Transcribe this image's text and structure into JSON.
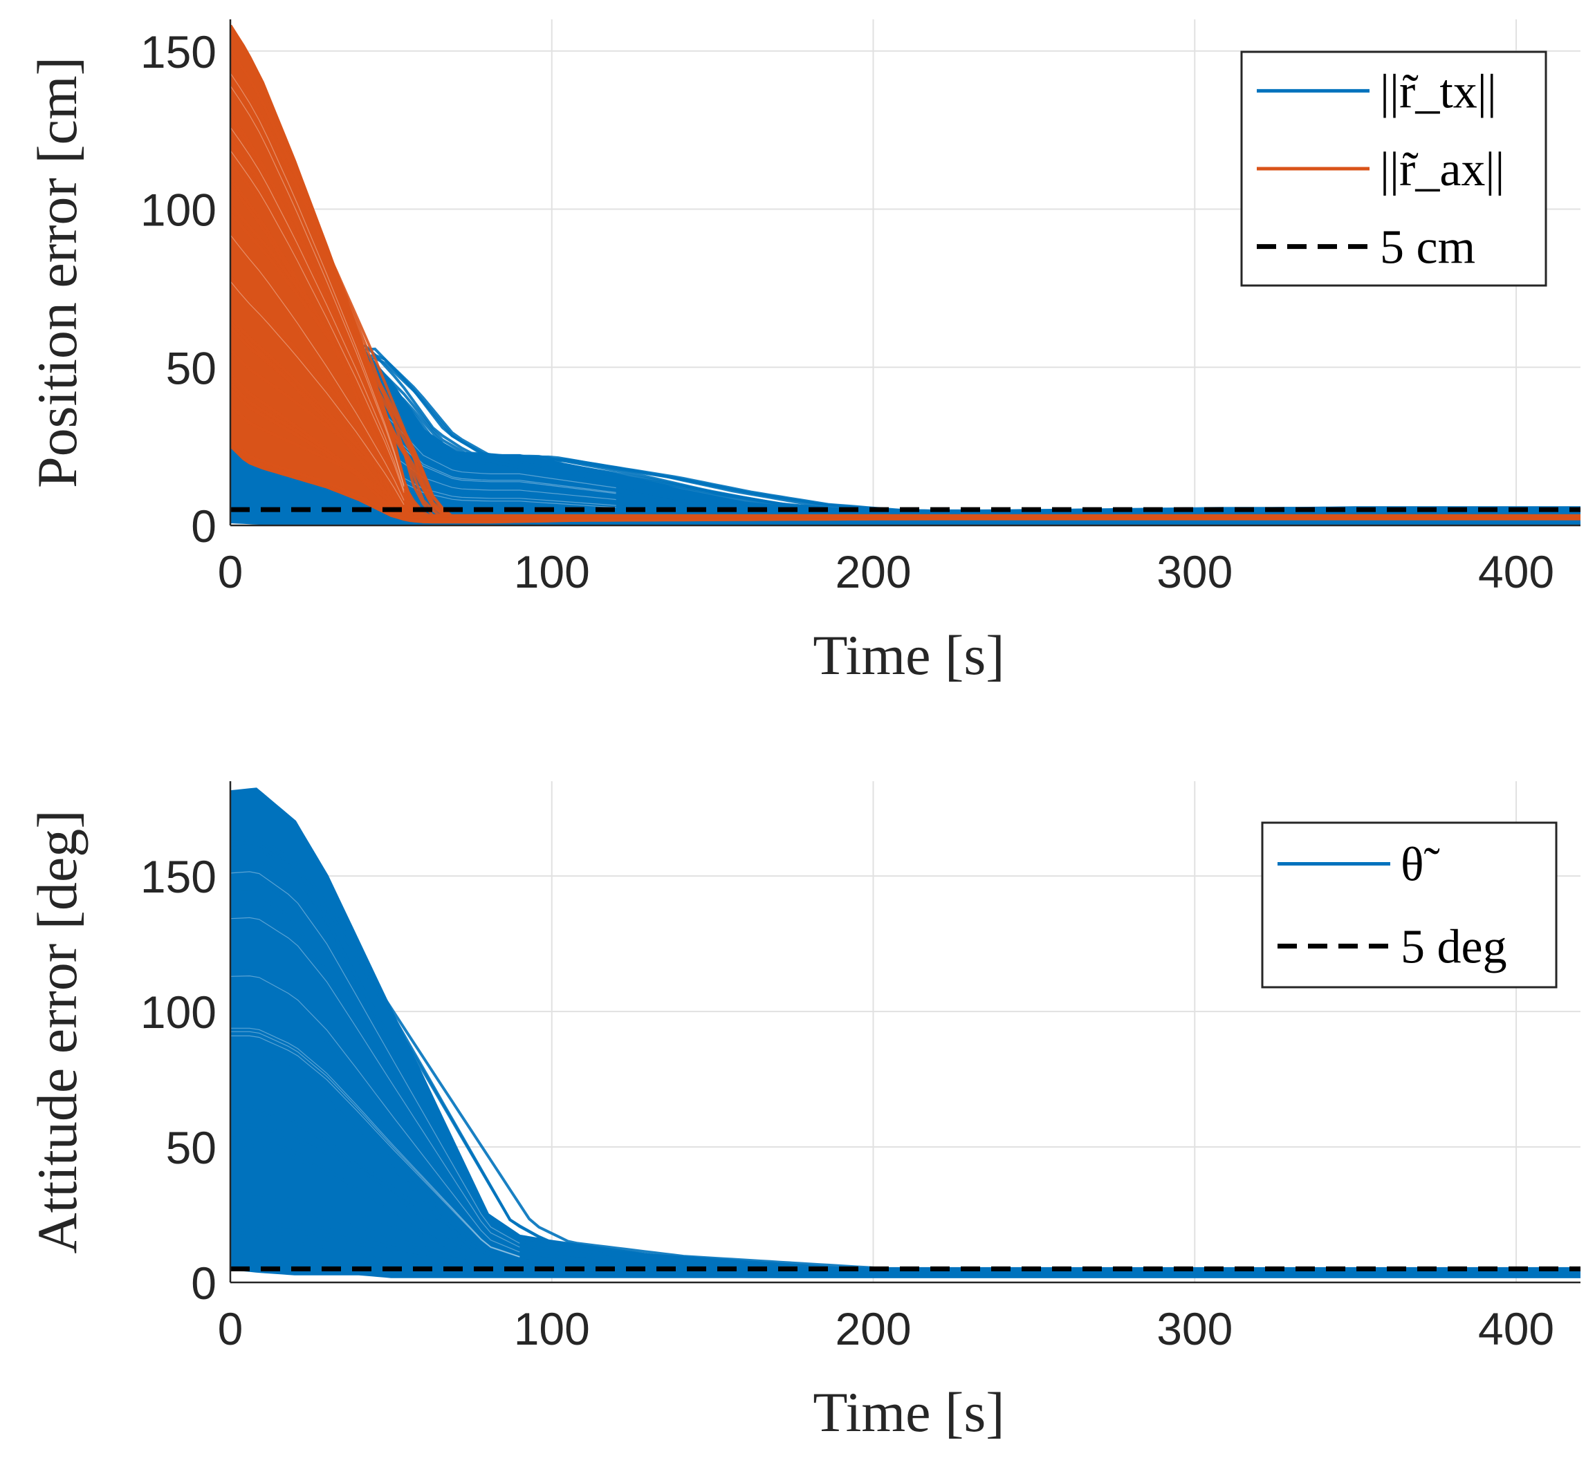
{
  "chart_data": [
    {
      "type": "line",
      "xlabel": "Time [s]",
      "ylabel": "Position error [cm]",
      "xlim": [
        0,
        420
      ],
      "ylim": [
        0,
        160
      ],
      "xticks": [
        0,
        100,
        200,
        300,
        400
      ],
      "yticks": [
        0,
        50,
        100,
        150
      ],
      "grid": true,
      "legend_position": "top-right",
      "series": [
        {
          "name": "||r̃_tx||",
          "color": "#0072BD",
          "style": "solid",
          "envelope": {
            "x": [
              0,
              10,
              20,
              30,
              40,
              50,
              60,
              70,
              80,
              90,
              100,
              120,
              140,
              160,
              180,
              200,
              250,
              300,
              350,
              420
            ],
            "upper": [
              82,
              72,
              62,
              55,
              57,
              45,
              30,
              23,
              22,
              22,
              20,
              16,
              11,
              7,
              5,
              4.5,
              4.5,
              5,
              5.5,
              5.5
            ],
            "lower": [
              1,
              0.5,
              0.5,
              0.5,
              0.5,
              0.5,
              0.5,
              0.5,
              0.5,
              0.5,
              0.5,
              0.5,
              0.5,
              0.5,
              0.5,
              0.5,
              0.5,
              0.5,
              0.5,
              0.5
            ]
          }
        },
        {
          "name": "||r̃_ax||",
          "color": "#D95319",
          "style": "solid",
          "envelope": {
            "x": [
              0,
              5,
              10,
              20,
              30,
              40,
              50,
              55,
              60,
              80,
              100,
              200,
              300,
              420
            ],
            "upper": [
              158,
              150,
              140,
              115,
              88,
              60,
              30,
              10,
              3,
              3,
              3,
              3,
              3,
              3
            ],
            "lower": [
              25,
              20,
              18,
              15,
              12,
              8,
              3,
              1.5,
              1,
              1,
              1.5,
              2,
              2,
              2
            ]
          }
        },
        {
          "name": "5 cm",
          "color": "#000000",
          "style": "dashed",
          "x": [
            0,
            420
          ],
          "y": [
            5,
            5
          ]
        }
      ]
    },
    {
      "type": "line",
      "xlabel": "Time [s]",
      "ylabel": "Attitude error [deg]",
      "xlim": [
        0,
        420
      ],
      "ylim": [
        0,
        185
      ],
      "xticks": [
        0,
        100,
        200,
        300,
        400
      ],
      "yticks": [
        0,
        50,
        100,
        150
      ],
      "grid": true,
      "legend_position": "top-right",
      "series": [
        {
          "name": "θ̃",
          "color": "#0072BD",
          "style": "solid",
          "envelope": {
            "x": [
              0,
              8,
              20,
              30,
              40,
              50,
              60,
              70,
              80,
              90,
              100,
              120,
              150,
              180,
              200,
              300,
              420
            ],
            "upper": [
              181,
              182,
              170,
              150,
              125,
              100,
              75,
              50,
              25,
              17,
              15,
              11,
              8,
              5,
              5,
              5,
              5
            ],
            "lower": [
              5,
              4,
              3,
              3,
              3,
              2,
              2,
              2,
              2,
              2,
              2,
              2,
              2,
              2,
              2,
              2,
              2
            ]
          }
        },
        {
          "name": "5 deg",
          "color": "#000000",
          "style": "dashed",
          "x": [
            0,
            420
          ],
          "y": [
            5,
            5
          ]
        }
      ]
    }
  ]
}
